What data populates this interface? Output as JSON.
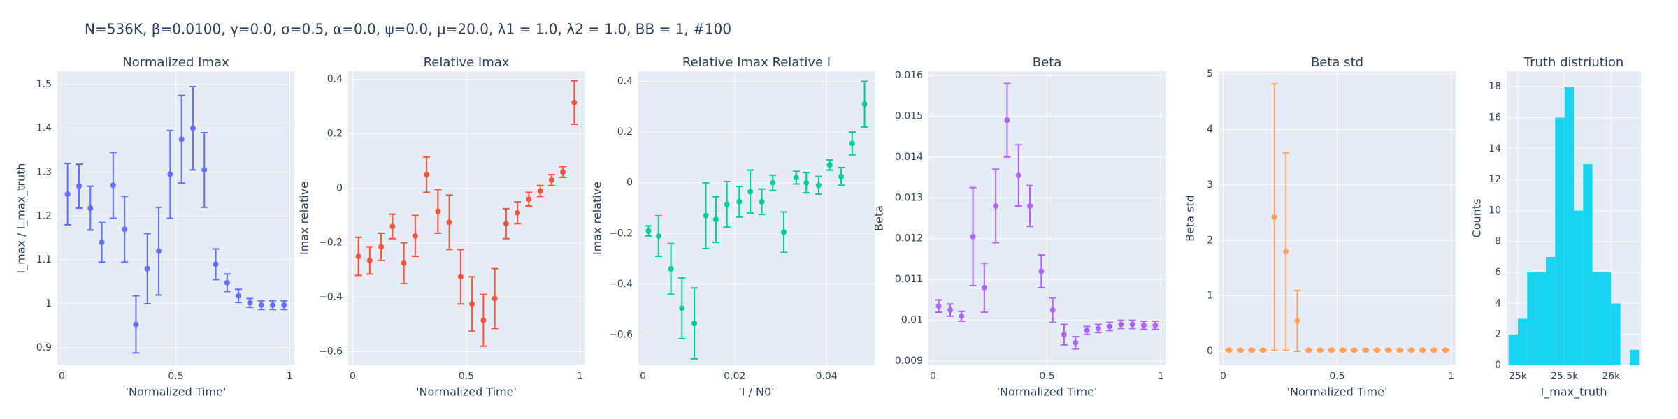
{
  "title": "N=536K, β=0.0100, γ=0.0, σ=0.5,  α=0.0, ψ=0.0, μ=20.0, λ1 = 1.0, λ2 = 1.0, BB = 1, #100",
  "chart_data": [
    {
      "type": "scatter",
      "title": "Normalized Imax",
      "xlabel": "'Normalized Time'",
      "ylabel": "I_max / I_max_truth",
      "color": "#636efa",
      "x": [
        0.025,
        0.075,
        0.125,
        0.175,
        0.225,
        0.275,
        0.325,
        0.375,
        0.425,
        0.475,
        0.525,
        0.575,
        0.625,
        0.675,
        0.725,
        0.775,
        0.825,
        0.875,
        0.925,
        0.975
      ],
      "values": [
        1.25,
        1.268,
        1.218,
        1.14,
        1.27,
        1.17,
        0.953,
        1.08,
        1.12,
        1.295,
        1.375,
        1.4,
        1.305,
        1.09,
        1.048,
        1.018,
        1.002,
        0.997,
        0.997,
        0.997
      ],
      "errors": [
        0.07,
        0.05,
        0.05,
        0.045,
        0.075,
        0.075,
        0.065,
        0.08,
        0.1,
        0.1,
        0.1,
        0.095,
        0.085,
        0.035,
        0.02,
        0.015,
        0.01,
        0.01,
        0.01,
        0.01
      ],
      "xlim": [
        -0.02,
        1.02
      ],
      "xticks": [
        0,
        0.5,
        1
      ],
      "ylim": [
        0.86,
        1.53
      ],
      "yticks": [
        0.9,
        1,
        1.1,
        1.2,
        1.3,
        1.4,
        1.5
      ],
      "grid": true
    },
    {
      "type": "scatter",
      "title": "Relative Imax",
      "xlabel": "'Normalized Time'",
      "ylabel": "Imax relative",
      "color": "#EF553B",
      "x": [
        0.025,
        0.075,
        0.125,
        0.175,
        0.225,
        0.275,
        0.325,
        0.375,
        0.425,
        0.475,
        0.525,
        0.575,
        0.625,
        0.675,
        0.725,
        0.775,
        0.825,
        0.875,
        0.925,
        0.975
      ],
      "values": [
        -0.25,
        -0.265,
        -0.215,
        -0.14,
        -0.275,
        -0.175,
        0.05,
        -0.085,
        -0.125,
        -0.325,
        -0.425,
        -0.485,
        -0.405,
        -0.13,
        -0.09,
        -0.04,
        -0.01,
        0.03,
        0.06,
        0.315
      ],
      "errors": [
        0.07,
        0.05,
        0.05,
        0.045,
        0.075,
        0.075,
        0.065,
        0.08,
        0.1,
        0.1,
        0.1,
        0.095,
        0.11,
        0.055,
        0.04,
        0.025,
        0.02,
        0.02,
        0.02,
        0.08
      ],
      "xlim": [
        -0.02,
        1.02
      ],
      "xticks": [
        0,
        0.5,
        1
      ],
      "ylim": [
        -0.65,
        0.43
      ],
      "yticks": [
        {
          "value": -0.6,
          "label": "−0.6"
        },
        {
          "value": -0.4,
          "label": "−0.4"
        },
        {
          "value": -0.2,
          "label": "−0.2"
        },
        0,
        0.2,
        0.4
      ],
      "grid": true
    },
    {
      "type": "scatter",
      "title": "Relative Imax Relative I",
      "xlabel": "'I / N0'",
      "ylabel": "Imax relative",
      "color": "#00cc96",
      "x": [
        0.0012,
        0.0034,
        0.0061,
        0.0085,
        0.0112,
        0.0137,
        0.0159,
        0.0183,
        0.021,
        0.0234,
        0.0259,
        0.0283,
        0.0307,
        0.0334,
        0.0356,
        0.0383,
        0.0407,
        0.0432,
        0.0456,
        0.0483
      ],
      "values": [
        -0.19,
        -0.21,
        -0.34,
        -0.495,
        -0.555,
        -0.13,
        -0.145,
        -0.085,
        -0.075,
        -0.035,
        -0.075,
        0.0,
        -0.195,
        0.02,
        0.0,
        -0.01,
        0.07,
        0.025,
        0.155,
        0.31
      ],
      "errors": [
        0.02,
        0.08,
        0.1,
        0.12,
        0.14,
        0.13,
        0.09,
        0.09,
        0.06,
        0.085,
        0.05,
        0.03,
        0.08,
        0.025,
        0.04,
        0.035,
        0.02,
        0.035,
        0.045,
        0.09
      ],
      "xlim": [
        -0.001,
        0.0505
      ],
      "xticks": [
        0,
        0.02,
        0.04
      ],
      "ylim": [
        -0.72,
        0.44
      ],
      "yticks": [
        {
          "value": -0.6,
          "label": "−0.6"
        },
        {
          "value": -0.4,
          "label": "−0.4"
        },
        {
          "value": -0.2,
          "label": "−0.2"
        },
        0,
        0.2,
        0.4
      ],
      "grid": true
    },
    {
      "type": "scatter",
      "title": "Beta",
      "xlabel": "'Normalized Time'",
      "ylabel": "Beta",
      "color": "#ab63fa",
      "x": [
        0.025,
        0.075,
        0.125,
        0.175,
        0.225,
        0.275,
        0.325,
        0.375,
        0.425,
        0.475,
        0.525,
        0.575,
        0.625,
        0.675,
        0.725,
        0.775,
        0.825,
        0.875,
        0.925,
        0.975
      ],
      "values": [
        0.01035,
        0.01025,
        0.0101,
        0.01205,
        0.0108,
        0.0128,
        0.0149,
        0.01355,
        0.0128,
        0.0112,
        0.01025,
        0.00965,
        0.00945,
        0.00975,
        0.0098,
        0.00985,
        0.0099,
        0.0099,
        0.00988,
        0.00988
      ],
      "errors": [
        0.00015,
        0.00015,
        0.00012,
        0.0012,
        0.0006,
        0.0009,
        0.0009,
        0.00075,
        0.0005,
        0.0004,
        0.0003,
        0.00025,
        0.00015,
        0.0001,
        0.0001,
        0.0001,
        0.0001,
        0.0001,
        0.0001,
        0.0001
      ],
      "xlim": [
        -0.02,
        1.02
      ],
      "xticks": [
        0,
        0.5,
        1
      ],
      "ylim": [
        0.0089,
        0.0161
      ],
      "yticks": [
        0.009,
        0.01,
        0.011,
        0.012,
        0.013,
        0.014,
        0.015,
        0.016
      ],
      "grid": true
    },
    {
      "type": "scatter",
      "title": "Beta std",
      "xlabel": "'Normalized Time'",
      "ylabel": "Beta std",
      "color": "#FFA15A",
      "x": [
        0.025,
        0.075,
        0.125,
        0.175,
        0.225,
        0.275,
        0.325,
        0.375,
        0.425,
        0.475,
        0.525,
        0.575,
        0.625,
        0.675,
        0.725,
        0.775,
        0.825,
        0.875,
        0.925,
        0.975
      ],
      "values": [
        0.02,
        0.02,
        0.02,
        0.02,
        2.42,
        1.8,
        0.55,
        0.02,
        0.02,
        0.02,
        0.02,
        0.02,
        0.02,
        0.02,
        0.02,
        0.02,
        0.02,
        0.02,
        0.02,
        0.02
      ],
      "errors": [
        0.01,
        0.01,
        0.01,
        0.01,
        2.4,
        1.78,
        0.55,
        0.01,
        0.01,
        0.01,
        0.01,
        0.01,
        0.01,
        0.01,
        0.01,
        0.01,
        0.01,
        0.01,
        0.01,
        0.01
      ],
      "xlim": [
        -0.02,
        1.02
      ],
      "xticks": [
        0,
        0.5,
        1
      ],
      "ylim": [
        -0.25,
        5.05
      ],
      "yticks": [
        0,
        1,
        2,
        3,
        4,
        5
      ],
      "grid": true
    },
    {
      "type": "histogram",
      "title": "Truth distriution",
      "xlabel": "I_max_truth",
      "ylabel": "Counts",
      "color": "#19d3f3",
      "bins": [
        24900,
        25000,
        25100,
        25200,
        25300,
        25400,
        25500,
        25600,
        25700,
        25800,
        25900,
        26000,
        26100,
        26200,
        26300
      ],
      "counts": [
        2,
        3,
        6,
        6,
        7,
        16,
        18,
        10,
        13,
        6,
        6,
        4,
        0,
        1
      ],
      "xlim": [
        24880,
        26320
      ],
      "xticks": [
        {
          "value": 25000,
          "label": "25k"
        },
        {
          "value": 25500,
          "label": "25.5k"
        },
        {
          "value": 26000,
          "label": "26k"
        }
      ],
      "ylim": [
        0,
        19
      ],
      "yticks": [
        0,
        2,
        4,
        6,
        8,
        10,
        12,
        14,
        16,
        18
      ],
      "grid": true
    }
  ]
}
